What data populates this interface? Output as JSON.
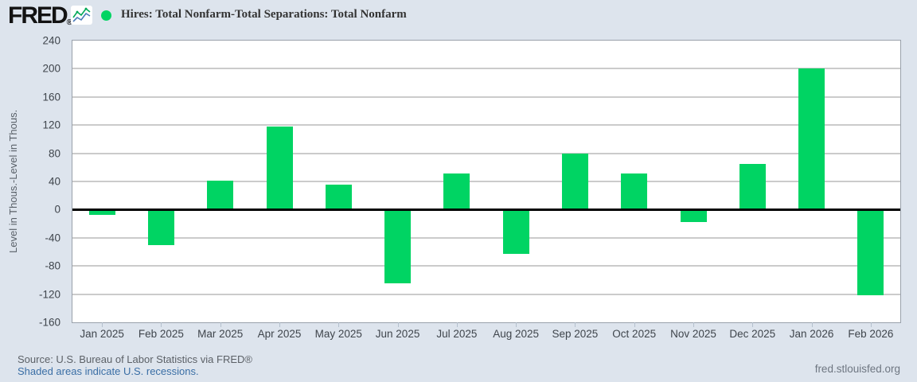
{
  "header": {
    "logo_text": "FRED",
    "logo_registered": "®",
    "series_title": "Hires: Total Nonfarm-Total Separations: Total Nonfarm"
  },
  "chart_data": {
    "type": "bar",
    "title": "Hires: Total Nonfarm-Total Separations: Total Nonfarm",
    "xlabel": "",
    "ylabel": "Level in Thous.-Level in Thous.",
    "ylim": [
      -160,
      240
    ],
    "yticks": [
      240,
      200,
      160,
      120,
      80,
      40,
      0,
      -40,
      -80,
      -120,
      -160
    ],
    "categories": [
      "Jan 2025",
      "Feb 2025",
      "Mar 2025",
      "Apr 2025",
      "May 2025",
      "Jun 2025",
      "Jul 2025",
      "Aug 2025",
      "Sep 2025",
      "Oct 2025",
      "Nov 2025",
      "Dec 2025",
      "Jan 2026",
      "Feb 2026"
    ],
    "values": [
      -8,
      -50,
      41,
      118,
      35,
      -105,
      51,
      -63,
      80,
      51,
      -18,
      65,
      200,
      -122
    ],
    "bar_color": "#00d463",
    "grid": true,
    "zero_line": true,
    "legend_position": "top-left",
    "background_color": "#dde4ed",
    "gridline_color": "#cbcbcb"
  },
  "footer": {
    "source": "Source: U.S. Bureau of Labor Statistics via FRED®",
    "recessions_link": "Shaded areas indicate U.S. recessions.",
    "site_link": "fred.stlouisfed.org"
  }
}
